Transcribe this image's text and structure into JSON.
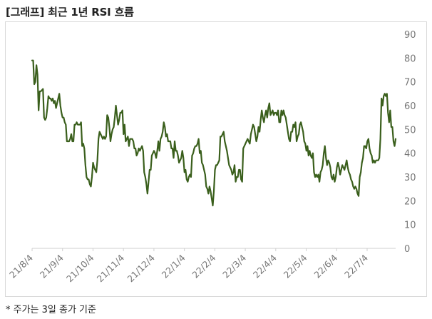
{
  "title": "[그래프] 최근 1년 RSI 흐름",
  "footnote": "* 주가는 3일 종가 기준",
  "colors": {
    "line": "#3a5f1c",
    "axis": "#cfcfcf",
    "tick_text": "#777777"
  },
  "chart_data": {
    "type": "line",
    "title": "[그래프] 최근 1년 RSI 흐름",
    "xlabel": "",
    "ylabel": "",
    "ylim": [
      0,
      90
    ],
    "yticks": [
      0,
      10,
      20,
      30,
      40,
      50,
      60,
      70,
      80,
      90
    ],
    "y_axis_side": "right",
    "grid": false,
    "xticks": [
      "21/8/4",
      "21/9/4",
      "21/10/4",
      "21/11/4",
      "21/12/4",
      "22/1/4",
      "22/2/4",
      "22/3/4",
      "22/4/4",
      "22/5/4",
      "22/6/4",
      "22/7/4"
    ],
    "series": [
      {
        "values": [
          79,
          79,
          69,
          70,
          77,
          73,
          58,
          66,
          66,
          66.5,
          67,
          55,
          54,
          55,
          59,
          64,
          63,
          63,
          62,
          63,
          61,
          62,
          59,
          61,
          63,
          65,
          60,
          57,
          55,
          55,
          53,
          52,
          45,
          45,
          45,
          46,
          48,
          45,
          45,
          52,
          52,
          53,
          52,
          52,
          52,
          53,
          43,
          44,
          42,
          35,
          30,
          29,
          29,
          27,
          26,
          30,
          36,
          34,
          33,
          32,
          37,
          46,
          49,
          48,
          47,
          46,
          47,
          46,
          47,
          56,
          55,
          51,
          45,
          48,
          50,
          51,
          55,
          60,
          56,
          52,
          54,
          57,
          57,
          58,
          48,
          52,
          45,
          46,
          47,
          43,
          46,
          46,
          46,
          45,
          42,
          42,
          39,
          40,
          42,
          41,
          42,
          43,
          41,
          32,
          30,
          27,
          23,
          28,
          33,
          33,
          39,
          40,
          41,
          40,
          38,
          41,
          45,
          41,
          46,
          47,
          49,
          53,
          51,
          47,
          48,
          45,
          45,
          45,
          42,
          42,
          38,
          45,
          41,
          41,
          39,
          36,
          37,
          38,
          41,
          38,
          32,
          33,
          29,
          28,
          30,
          31,
          30,
          39,
          40,
          42,
          43,
          43,
          44,
          46,
          40,
          41,
          36,
          35,
          33,
          31,
          26,
          25,
          23,
          26,
          24,
          21,
          18,
          24,
          33,
          35,
          35,
          36,
          37,
          47,
          47,
          48,
          49,
          45,
          43,
          41,
          38,
          35,
          34,
          33,
          31,
          32,
          35,
          28,
          30,
          30,
          33,
          33,
          29,
          28,
          42,
          43,
          44,
          45,
          46,
          45,
          44,
          48,
          50,
          52,
          51,
          48,
          45,
          47,
          51,
          49,
          54,
          58,
          55,
          53,
          56,
          58,
          55,
          59,
          61,
          56,
          57,
          58,
          56,
          57,
          57,
          56,
          58,
          53,
          53,
          58,
          56,
          58,
          56,
          55,
          52,
          49,
          46,
          45,
          49,
          49,
          52,
          51,
          53,
          45,
          47,
          48,
          52,
          53,
          51,
          49,
          45,
          44,
          41,
          43,
          39,
          41,
          39,
          38,
          40,
          32,
          30,
          31,
          30,
          31,
          28,
          32,
          33,
          35,
          40,
          43,
          38,
          35,
          37,
          36,
          34,
          30,
          29,
          31,
          28,
          30,
          34,
          36,
          34,
          31,
          33,
          35,
          34,
          33,
          35,
          37,
          34,
          32,
          31,
          29,
          28,
          26,
          25,
          26,
          25,
          23,
          22,
          30,
          32,
          36,
          38,
          43,
          43,
          42,
          45,
          46,
          42,
          40,
          39,
          36,
          37,
          36,
          37,
          37,
          37,
          38,
          46,
          63,
          60,
          64,
          65,
          64,
          65,
          57,
          53,
          58,
          51,
          51,
          45,
          43,
          46
        ]
      }
    ]
  }
}
